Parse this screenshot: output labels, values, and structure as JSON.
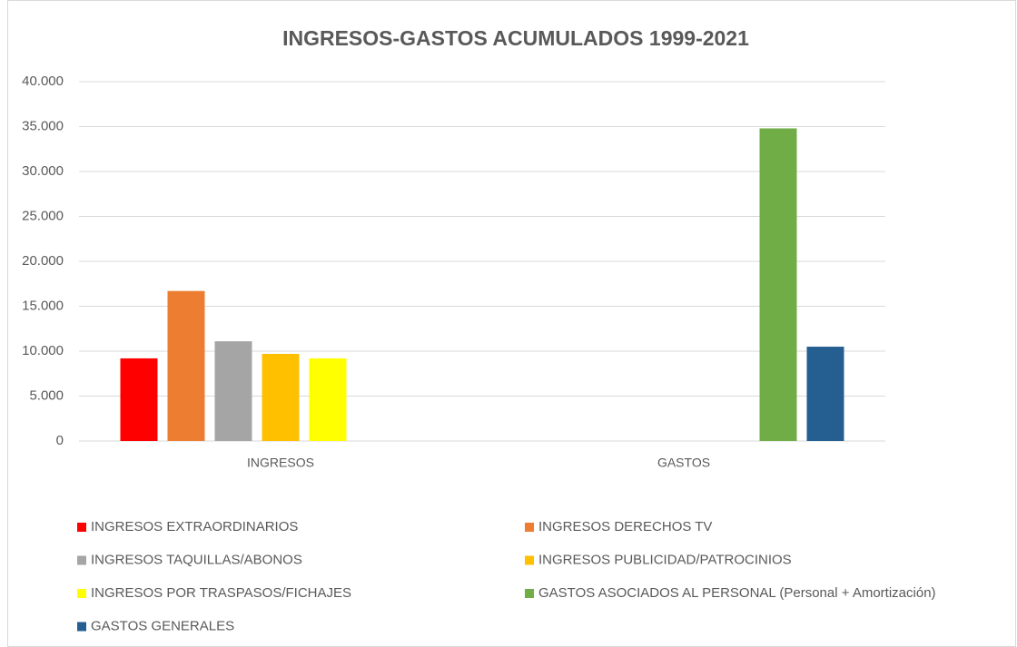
{
  "chart_data": {
    "type": "bar",
    "title": "INGRESOS-GASTOS ACUMULADOS 1999-2021",
    "categories": [
      "INGRESOS",
      "GASTOS"
    ],
    "series": [
      {
        "name": "INGRESOS EXTRAORDINARIOS",
        "color": "#ff0000",
        "values": [
          9200,
          null
        ]
      },
      {
        "name": "INGRESOS DERECHOS TV",
        "color": "#ed7d31",
        "values": [
          16700,
          null
        ]
      },
      {
        "name": "INGRESOS TAQUILLAS/ABONOS",
        "color": "#a5a5a5",
        "values": [
          11100,
          null
        ]
      },
      {
        "name": "INGRESOS PUBLICIDAD/PATROCINIOS",
        "color": "#ffc000",
        "values": [
          9700,
          null
        ]
      },
      {
        "name": "INGRESOS POR TRASPASOS/FICHAJES",
        "color": "#ffff00",
        "values": [
          9200,
          null
        ]
      },
      {
        "name": "GASTOS ASOCIADOS AL PERSONAL (Personal + Amortización)",
        "color": "#70ad47",
        "values": [
          null,
          34800
        ]
      },
      {
        "name": "GASTOS GENERALES",
        "color": "#255e91",
        "values": [
          null,
          10500
        ]
      }
    ],
    "ylim": [
      0,
      40000
    ],
    "yticks": [
      0,
      {
        "value": 5000,
        "label": "5.000"
      },
      {
        "value": 10000,
        "label": "10.000"
      },
      {
        "value": 15000,
        "label": "15.000"
      },
      {
        "value": 20000,
        "label": "20.000"
      },
      {
        "value": 25000,
        "label": "25.000"
      },
      {
        "value": 30000,
        "label": "30.000"
      },
      {
        "value": 35000,
        "label": "35.000"
      },
      {
        "value": 40000,
        "label": "40.000"
      }
    ],
    "grid": true,
    "legend": "bottom"
  }
}
